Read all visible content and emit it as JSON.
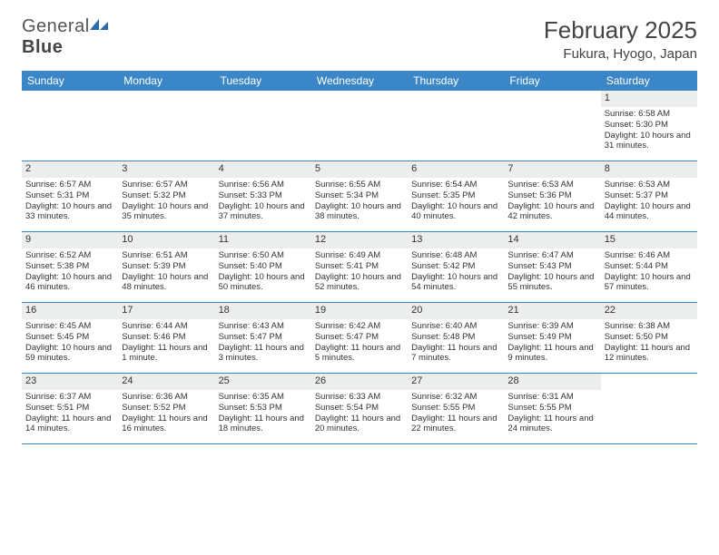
{
  "brand": {
    "first": "General",
    "second": "Blue"
  },
  "title": "February 2025",
  "location": "Fukura, Hyogo, Japan",
  "colors": {
    "header_bar": "#3b86c7",
    "header_text": "#ffffff",
    "daynum_bg": "#eceeee",
    "body_text": "#333333",
    "rule": "#3b86c7",
    "logo_accent": "#2a6bb0"
  },
  "daynames": [
    "Sunday",
    "Monday",
    "Tuesday",
    "Wednesday",
    "Thursday",
    "Friday",
    "Saturday"
  ],
  "layout": {
    "first_day_column": 6,
    "days_in_month": 28
  },
  "days": {
    "1": {
      "sunrise": "6:58 AM",
      "sunset": "5:30 PM",
      "daylight": "10 hours and 31 minutes."
    },
    "2": {
      "sunrise": "6:57 AM",
      "sunset": "5:31 PM",
      "daylight": "10 hours and 33 minutes."
    },
    "3": {
      "sunrise": "6:57 AM",
      "sunset": "5:32 PM",
      "daylight": "10 hours and 35 minutes."
    },
    "4": {
      "sunrise": "6:56 AM",
      "sunset": "5:33 PM",
      "daylight": "10 hours and 37 minutes."
    },
    "5": {
      "sunrise": "6:55 AM",
      "sunset": "5:34 PM",
      "daylight": "10 hours and 38 minutes."
    },
    "6": {
      "sunrise": "6:54 AM",
      "sunset": "5:35 PM",
      "daylight": "10 hours and 40 minutes."
    },
    "7": {
      "sunrise": "6:53 AM",
      "sunset": "5:36 PM",
      "daylight": "10 hours and 42 minutes."
    },
    "8": {
      "sunrise": "6:53 AM",
      "sunset": "5:37 PM",
      "daylight": "10 hours and 44 minutes."
    },
    "9": {
      "sunrise": "6:52 AM",
      "sunset": "5:38 PM",
      "daylight": "10 hours and 46 minutes."
    },
    "10": {
      "sunrise": "6:51 AM",
      "sunset": "5:39 PM",
      "daylight": "10 hours and 48 minutes."
    },
    "11": {
      "sunrise": "6:50 AM",
      "sunset": "5:40 PM",
      "daylight": "10 hours and 50 minutes."
    },
    "12": {
      "sunrise": "6:49 AM",
      "sunset": "5:41 PM",
      "daylight": "10 hours and 52 minutes."
    },
    "13": {
      "sunrise": "6:48 AM",
      "sunset": "5:42 PM",
      "daylight": "10 hours and 54 minutes."
    },
    "14": {
      "sunrise": "6:47 AM",
      "sunset": "5:43 PM",
      "daylight": "10 hours and 55 minutes."
    },
    "15": {
      "sunrise": "6:46 AM",
      "sunset": "5:44 PM",
      "daylight": "10 hours and 57 minutes."
    },
    "16": {
      "sunrise": "6:45 AM",
      "sunset": "5:45 PM",
      "daylight": "10 hours and 59 minutes."
    },
    "17": {
      "sunrise": "6:44 AM",
      "sunset": "5:46 PM",
      "daylight": "11 hours and 1 minute."
    },
    "18": {
      "sunrise": "6:43 AM",
      "sunset": "5:47 PM",
      "daylight": "11 hours and 3 minutes."
    },
    "19": {
      "sunrise": "6:42 AM",
      "sunset": "5:47 PM",
      "daylight": "11 hours and 5 minutes."
    },
    "20": {
      "sunrise": "6:40 AM",
      "sunset": "5:48 PM",
      "daylight": "11 hours and 7 minutes."
    },
    "21": {
      "sunrise": "6:39 AM",
      "sunset": "5:49 PM",
      "daylight": "11 hours and 9 minutes."
    },
    "22": {
      "sunrise": "6:38 AM",
      "sunset": "5:50 PM",
      "daylight": "11 hours and 12 minutes."
    },
    "23": {
      "sunrise": "6:37 AM",
      "sunset": "5:51 PM",
      "daylight": "11 hours and 14 minutes."
    },
    "24": {
      "sunrise": "6:36 AM",
      "sunset": "5:52 PM",
      "daylight": "11 hours and 16 minutes."
    },
    "25": {
      "sunrise": "6:35 AM",
      "sunset": "5:53 PM",
      "daylight": "11 hours and 18 minutes."
    },
    "26": {
      "sunrise": "6:33 AM",
      "sunset": "5:54 PM",
      "daylight": "11 hours and 20 minutes."
    },
    "27": {
      "sunrise": "6:32 AM",
      "sunset": "5:55 PM",
      "daylight": "11 hours and 22 minutes."
    },
    "28": {
      "sunrise": "6:31 AM",
      "sunset": "5:55 PM",
      "daylight": "11 hours and 24 minutes."
    }
  },
  "labels": {
    "sunrise": "Sunrise: ",
    "sunset": "Sunset: ",
    "daylight": "Daylight: "
  }
}
